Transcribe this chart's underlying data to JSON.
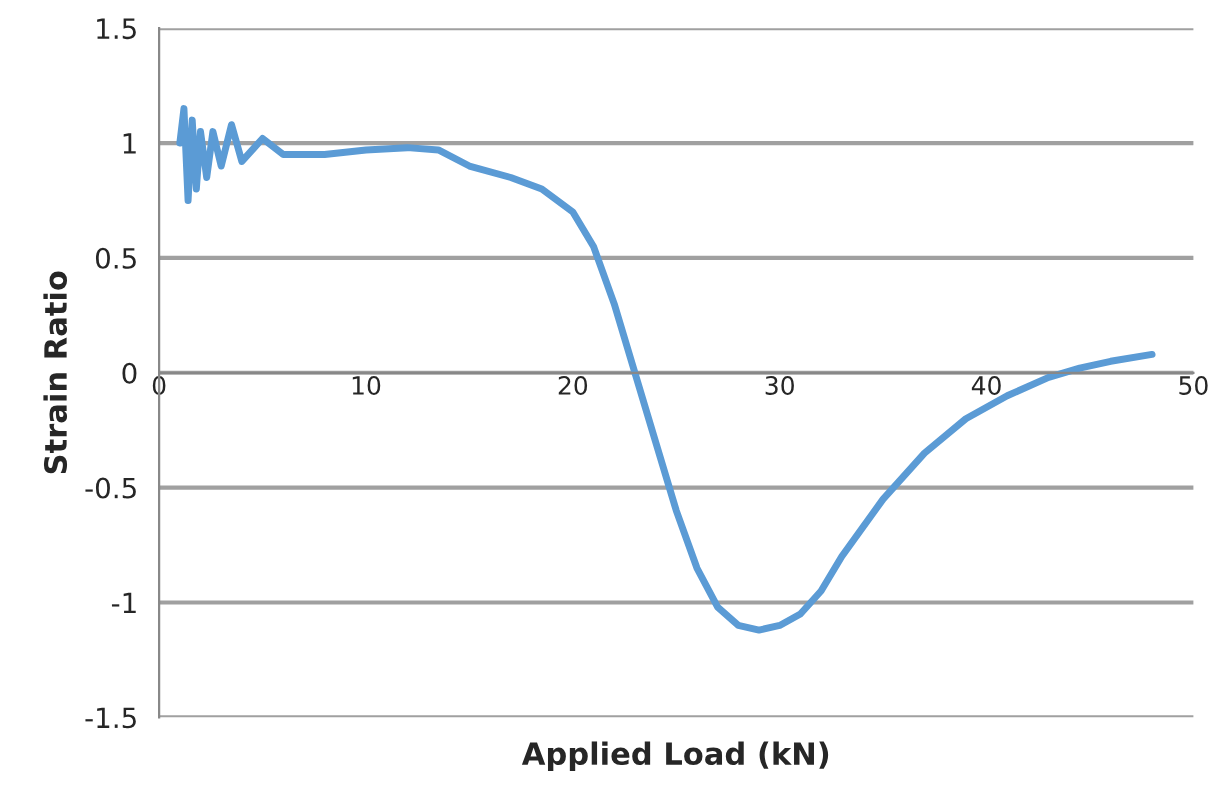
{
  "chart_data": {
    "type": "line",
    "xlabel": "Applied Load (kN)",
    "ylabel": "Strain Ratio",
    "series": [
      {
        "color": "#5b9bd5",
        "x": [
          1,
          1.2,
          1.4,
          1.6,
          1.8,
          2,
          2.3,
          2.6,
          3,
          3.5,
          4,
          5,
          6,
          8,
          10,
          12,
          13.5,
          15,
          17,
          18.5,
          20,
          21,
          22,
          23,
          24,
          25,
          26,
          27,
          28,
          29,
          30,
          31,
          32,
          33,
          35,
          37,
          39,
          41,
          43,
          44.5,
          46,
          48
        ],
        "values": [
          1.0,
          1.15,
          0.75,
          1.1,
          0.8,
          1.05,
          0.85,
          1.05,
          0.9,
          1.08,
          0.92,
          1.02,
          0.95,
          0.95,
          0.97,
          0.98,
          0.97,
          0.9,
          0.85,
          0.8,
          0.7,
          0.55,
          0.3,
          0.0,
          -0.3,
          -0.6,
          -0.85,
          -1.02,
          -1.1,
          -1.12,
          -1.1,
          -1.05,
          -0.95,
          -0.8,
          -0.55,
          -0.35,
          -0.2,
          -0.1,
          -0.02,
          0.02,
          0.05,
          0.08
        ]
      }
    ],
    "xlim": [
      0,
      50
    ],
    "xticks": [
      0,
      10,
      20,
      30,
      40,
      50
    ],
    "ylim": [
      -1.5,
      1.5
    ],
    "yticks": [
      -1.5,
      -1,
      -0.5,
      0,
      0.5,
      1,
      1.5
    ],
    "grid": "y",
    "marker": "none",
    "line_style": "solid"
  }
}
